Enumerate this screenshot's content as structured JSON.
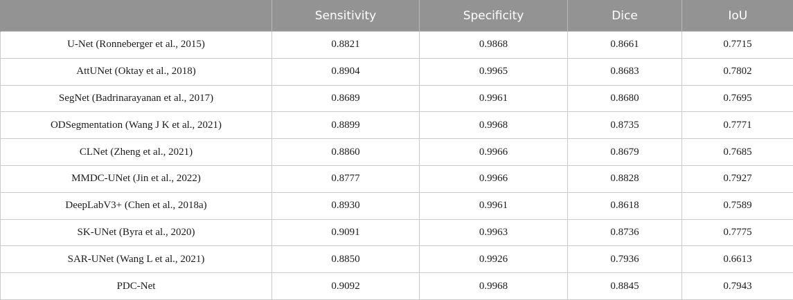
{
  "table": {
    "headers": [
      "",
      "Sensitivity",
      "Specificity",
      "Dice",
      "IoU"
    ],
    "rows": [
      [
        "U-Net (Ronneberger et al., 2015)",
        "0.8821",
        "0.9868",
        "0.8661",
        "0.7715"
      ],
      [
        "AttUNet (Oktay et al., 2018)",
        "0.8904",
        "0.9965",
        "0.8683",
        "0.7802"
      ],
      [
        "SegNet (Badrinarayanan et al., 2017)",
        "0.8689",
        "0.9961",
        "0.8680",
        "0.7695"
      ],
      [
        "ODSegmentation (Wang J K et al., 2021)",
        "0.8899",
        "0.9968",
        "0.8735",
        "0.7771"
      ],
      [
        "CLNet (Zheng et al., 2021)",
        "0.8860",
        "0.9966",
        "0.8679",
        "0.7685"
      ],
      [
        "MMDC-UNet (Jin et al., 2022)",
        "0.8777",
        "0.9966",
        "0.8828",
        "0.7927"
      ],
      [
        "DeepLabV3+ (Chen et al., 2018a)",
        "0.8930",
        "0.9961",
        "0.8618",
        "0.7589"
      ],
      [
        "SK-UNet (Byra et al., 2020)",
        "0.9091",
        "0.9963",
        "0.8736",
        "0.7775"
      ],
      [
        "SAR-UNet (Wang L et al., 2021)",
        "0.8850",
        "0.9926",
        "0.7936",
        "0.6613"
      ],
      [
        "PDC-Net",
        "0.9092",
        "0.9968",
        "0.8845",
        "0.7943"
      ]
    ]
  },
  "colors": {
    "header_background": "#939393",
    "header_text": "#ffffff",
    "grid_line": "#c9c9c9"
  }
}
